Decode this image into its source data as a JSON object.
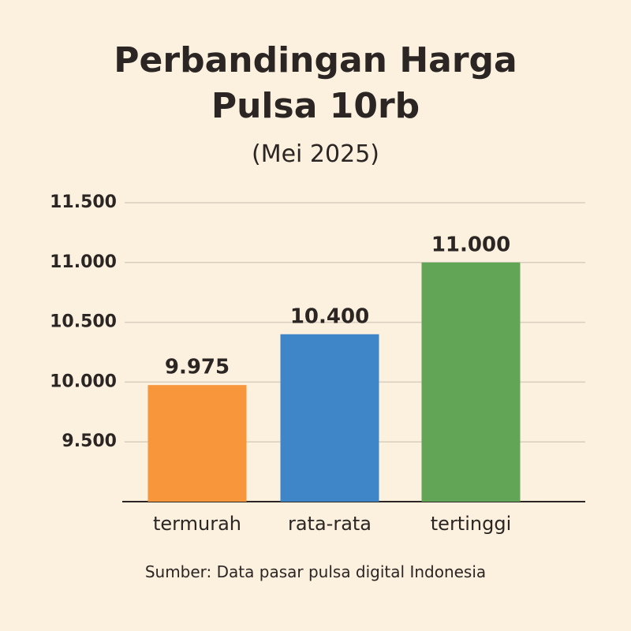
{
  "chart_data": {
    "type": "bar",
    "title": "Perbandingan Harga Pulsa 10rb",
    "subtitle": "(Mei 2025)",
    "categories": [
      "termurah",
      "rata-rata",
      "tertinggi"
    ],
    "values": [
      9975,
      10400,
      11000
    ],
    "value_labels": [
      "9.975",
      "10.400",
      "11.000"
    ],
    "colors": [
      "#f7963a",
      "#3f86c8",
      "#62a556"
    ],
    "ylim": [
      9000,
      11500
    ],
    "yticks": [
      {
        "value": 9500,
        "label": "9.500"
      },
      {
        "value": 10000,
        "label": "10.000"
      },
      {
        "value": 10500,
        "label": "10.500"
      },
      {
        "value": 11000,
        "label": "11.000"
      },
      {
        "value": 11500,
        "label": "11.500"
      }
    ],
    "grid": true,
    "source": "Sumber: Data pasar pulsa digital Indonesia"
  }
}
